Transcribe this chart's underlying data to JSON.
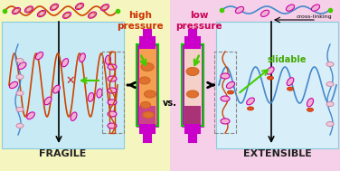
{
  "bg_left_color": "#f5f5c0",
  "bg_right_color": "#f5d0e8",
  "panel_left_color": "#c8eaf5",
  "panel_right_color": "#d8eef8",
  "title_left": "FRAGILE",
  "title_right": "EXTENSIBLE",
  "label_high": "high\npressure",
  "label_low": "low\npressure",
  "label_vs": "vs.",
  "label_slidable": "slidable",
  "label_crosslink": "cross-linking",
  "tube_left_fill": "#f5a050",
  "tube_right_fill": "#f5d0c8",
  "tube_border": "#c800c8",
  "tube_cap_color": "#cc00cc",
  "tube_green_ring": "#00cc00",
  "tube_bottom_fill": "#cc4488",
  "chain_color_dense": "#cc4400",
  "chain_color_sparse": "#4488cc",
  "ring_color": "#cc00aa",
  "ring_fill": "#f0b0d0",
  "crosslink_color": "#cc4444",
  "green_arrow": "#44cc00",
  "arrow_color": "#222222",
  "oval_fill_dense": "#e07030",
  "oval_fill_sparse": "#e07030",
  "text_high_color": "#cc3300",
  "text_low_color": "#cc0055",
  "text_slidable_color": "#44aa00",
  "text_fragile_color": "#222222",
  "text_extensible_color": "#222222"
}
